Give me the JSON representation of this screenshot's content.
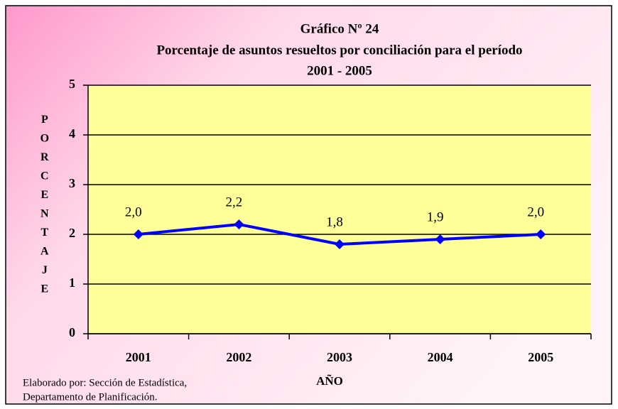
{
  "chart_data": {
    "type": "line",
    "title": "Gráfico Nº 24",
    "subtitle": [
      "Porcentaje de asuntos resueltos por conciliación  para el período",
      "2001 - 2005"
    ],
    "y_label": "PORCENTAJE",
    "x_label": "AÑO",
    "categories": [
      "2001",
      "2002",
      "2003",
      "2004",
      "2005"
    ],
    "series": [
      {
        "color": "#0000ff",
        "values": [
          2.0,
          2.2,
          1.8,
          1.9,
          2.0
        ],
        "value_labels": [
          "2,0",
          "2,2",
          "1,8",
          "1,9",
          "2,0"
        ]
      }
    ],
    "ylim": [
      0,
      5
    ],
    "yticks": [
      0,
      1,
      2,
      3,
      4,
      5
    ],
    "grid": true,
    "plot_color": "#ffff99",
    "notes": [
      "Elaborado por: Sección de Estadística,",
      "Departamento de Planificación."
    ]
  }
}
